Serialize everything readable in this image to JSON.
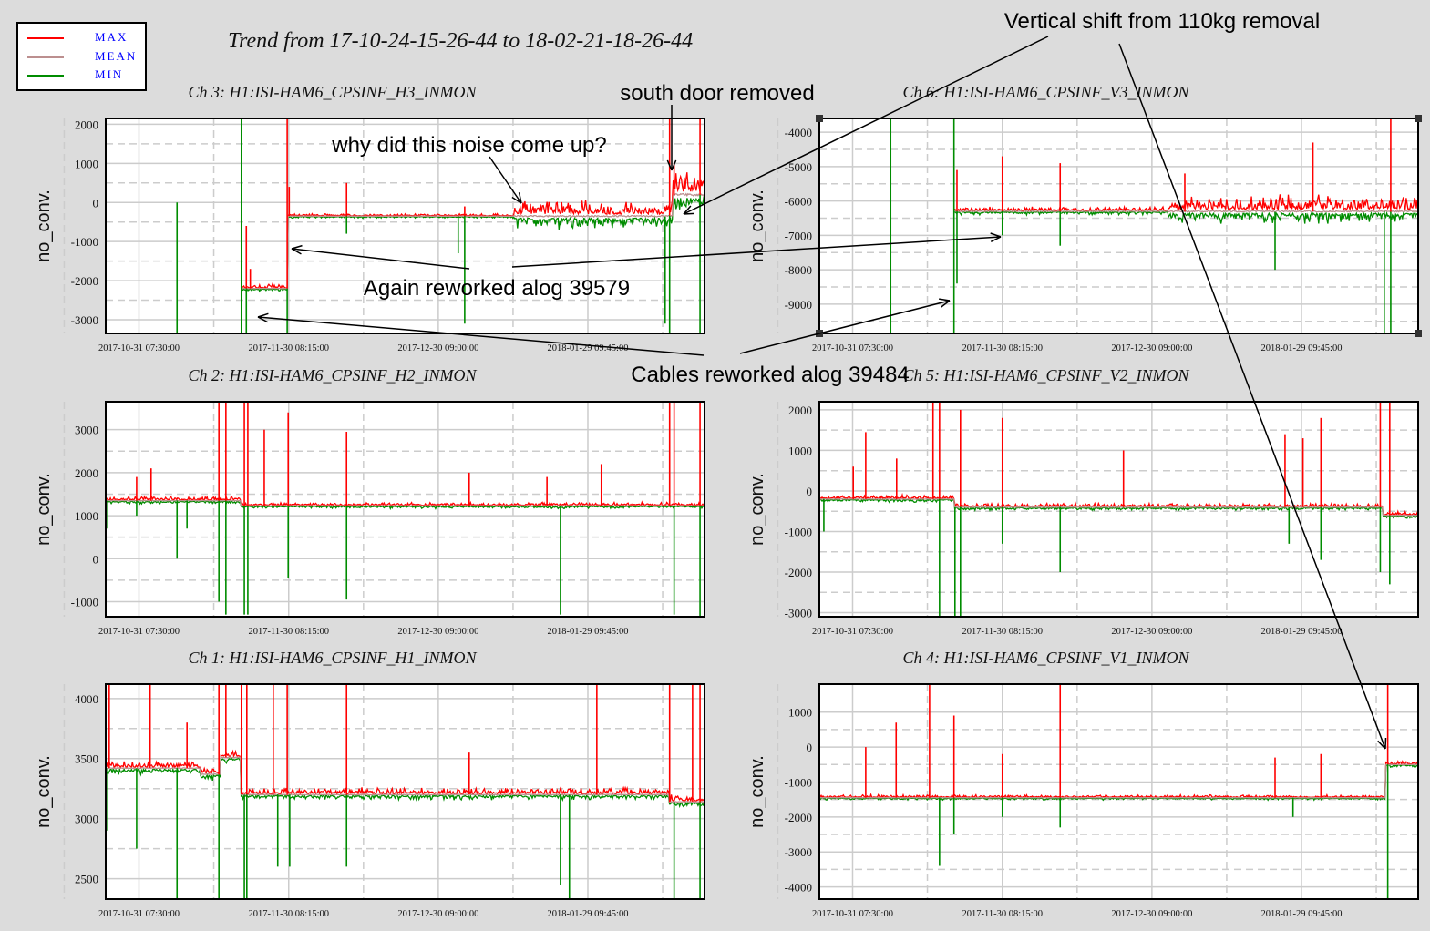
{
  "title": "Trend from 17-10-24-15-26-44 to 18-02-21-18-26-44",
  "legend": [
    {
      "label": "MAX",
      "color": "#ff0000"
    },
    {
      "label": "MEAN",
      "color": "#bc8f8f"
    },
    {
      "label": "MIN",
      "color": "#008c00"
    }
  ],
  "annotations": {
    "vertical_shift": "Vertical shift from 110kg removal",
    "south_door": "south door removed",
    "noise": "why did this noise come up?",
    "again_reworked": "Again reworked alog 39579",
    "cables_reworked": "Cables reworked alog 39484"
  },
  "chart_data": [
    {
      "type": "line",
      "title": "Ch 3: H1:ISI-HAM6_CPSINF_H3_INMON",
      "ylabel": "no_conv.",
      "ylim": [
        -3350,
        2150
      ],
      "yticks": [
        2000,
        1000,
        0,
        -1000,
        -2000,
        -3000
      ],
      "xlabel_ticks": [
        "2017-10-31 07:30:00",
        "2017-11-30 08:15:00",
        "2017-12-30 09:00:00",
        "2018-01-29 09:45:00"
      ],
      "xtick_days": [
        6.67,
        36.7,
        66.7,
        96.7
      ],
      "xlim_days": [
        0,
        120.1
      ],
      "segments": [
        [
          27.2,
          36.4,
          -2200,
          60
        ],
        [
          36.4,
          82,
          -350,
          40
        ],
        [
          82,
          113.7,
          -350,
          250
        ],
        [
          113.7,
          120.1,
          200,
          400
        ]
      ],
      "spikes": [
        [
          14.3,
          0,
          -3350
        ],
        [
          27.2,
          2150,
          -3350
        ],
        [
          28.2,
          -600,
          -3350
        ],
        [
          29,
          -1700,
          null
        ],
        [
          36.4,
          2150,
          -3350
        ],
        [
          36.8,
          400,
          null
        ],
        [
          48.3,
          500,
          -800
        ],
        [
          70.7,
          null,
          -1300
        ],
        [
          72,
          -100,
          -3100
        ],
        [
          112.2,
          null,
          -3100
        ],
        [
          113.1,
          2150,
          -3350
        ],
        [
          114,
          1000,
          null
        ],
        [
          119.2,
          2150,
          -3350
        ]
      ]
    },
    {
      "type": "line",
      "title": "Ch 6: H1:ISI-HAM6_CPSINF_V3_INMON",
      "ylabel": "no_conv.",
      "ylim": [
        -9850,
        -3600
      ],
      "yticks": [
        -4000,
        -5000,
        -6000,
        -7000,
        -8000,
        -9000
      ],
      "xlabel_ticks": [
        "2017-10-31 07:30:00",
        "2017-11-30 08:15:00",
        "2017-12-30 09:00:00",
        "2018-01-29 09:45:00"
      ],
      "xtick_days": [
        6.67,
        36.7,
        66.7,
        96.7
      ],
      "xlim_days": [
        0,
        120.1
      ],
      "segments": [
        [
          27,
          70,
          -6300,
          80
        ],
        [
          70,
          120.1,
          -6300,
          280
        ]
      ],
      "spikes": [
        [
          14.3,
          -3600,
          -9850
        ],
        [
          27,
          -3600,
          -9850
        ],
        [
          27.6,
          -5100,
          -8400
        ],
        [
          36.7,
          -4700,
          -7000
        ],
        [
          48.3,
          -4900,
          -7300
        ],
        [
          73.3,
          -5200,
          null
        ],
        [
          91.4,
          null,
          -8000
        ],
        [
          99,
          -4300,
          null
        ],
        [
          113.3,
          null,
          -9850
        ],
        [
          114.6,
          -3600,
          -9850
        ]
      ]
    },
    {
      "type": "line",
      "title": "Ch 2: H1:ISI-HAM6_CPSINF_H2_INMON",
      "ylabel": "no_conv.",
      "ylim": [
        -1350,
        3650
      ],
      "yticks": [
        3000,
        2000,
        1000,
        0,
        -1000
      ],
      "xlabel_ticks": [
        "2017-10-31 07:30:00",
        "2017-11-30 08:15:00",
        "2017-12-30 09:00:00",
        "2018-01-29 09:45:00"
      ],
      "xtick_days": [
        6.67,
        36.7,
        66.7,
        96.7
      ],
      "xlim_days": [
        0,
        120.1
      ],
      "segments": [
        [
          0,
          27,
          1350,
          60
        ],
        [
          27,
          120.1,
          1230,
          50
        ]
      ],
      "spikes": [
        [
          0.4,
          null,
          700
        ],
        [
          6.2,
          1900,
          1000
        ],
        [
          9.1,
          2100,
          null
        ],
        [
          14.3,
          null,
          0
        ],
        [
          16.3,
          null,
          700
        ],
        [
          22.7,
          3650,
          -1000
        ],
        [
          24.1,
          3650,
          -1300
        ],
        [
          27.8,
          3650,
          -1300
        ],
        [
          28.5,
          3650,
          -1300
        ],
        [
          31.8,
          3000,
          null
        ],
        [
          36.6,
          3400,
          -450
        ],
        [
          48.3,
          2950,
          -950
        ],
        [
          72.9,
          2000,
          null
        ],
        [
          88.5,
          1900,
          null
        ],
        [
          91.2,
          null,
          -1300
        ],
        [
          99.4,
          2200,
          null
        ],
        [
          113.1,
          3650,
          null
        ],
        [
          114,
          3650,
          -1300
        ],
        [
          119.2,
          3650,
          -1350
        ]
      ]
    },
    {
      "type": "line",
      "title": "Ch 5: H1:ISI-HAM6_CPSINF_V2_INMON",
      "ylabel": "no_conv.",
      "ylim": [
        -3100,
        2200
      ],
      "yticks": [
        2000,
        1000,
        0,
        -1000,
        -2000,
        -3000
      ],
      "xlabel_ticks": [
        "2017-10-31 07:30:00",
        "2017-11-30 08:15:00",
        "2017-12-30 09:00:00",
        "2018-01-29 09:45:00"
      ],
      "xtick_days": [
        6.67,
        36.7,
        66.7,
        96.7
      ],
      "xlim_days": [
        0,
        120.1
      ],
      "segments": [
        [
          0,
          27,
          -200,
          60
        ],
        [
          27,
          113,
          -400,
          60
        ],
        [
          113,
          120.1,
          -600,
          60
        ]
      ],
      "spikes": [
        [
          0.9,
          null,
          -1000
        ],
        [
          6.8,
          600,
          null
        ],
        [
          9.3,
          1450,
          null
        ],
        [
          15.5,
          800,
          null
        ],
        [
          22.8,
          2200,
          null
        ],
        [
          24.1,
          2200,
          -3100
        ],
        [
          27.2,
          null,
          -3100
        ],
        [
          28.3,
          2000,
          -3100
        ],
        [
          36.7,
          1800,
          -1300
        ],
        [
          48.3,
          null,
          -2000
        ],
        [
          61,
          1000,
          null
        ],
        [
          93.4,
          1400,
          null
        ],
        [
          94.2,
          null,
          -1300
        ],
        [
          97,
          1300,
          null
        ],
        [
          100.6,
          1800,
          -1700
        ],
        [
          112.5,
          2200,
          -2000
        ],
        [
          114.4,
          2200,
          -2300
        ]
      ]
    },
    {
      "type": "line",
      "title": "Ch 1: H1:ISI-HAM6_CPSINF_H1_INMON",
      "ylabel": "no_conv.",
      "ylim": [
        2330,
        4120
      ],
      "yticks": [
        4000,
        3500,
        3000,
        2500
      ],
      "xlabel_ticks": [
        "2017-10-31 07:30:00",
        "2017-11-30 08:15:00",
        "2017-12-30 09:00:00",
        "2018-01-29 09:45:00"
      ],
      "xtick_days": [
        6.67,
        36.7,
        66.7,
        96.7
      ],
      "xlim_days": [
        0,
        120.1
      ],
      "segments": [
        [
          0,
          19,
          3420,
          40
        ],
        [
          19,
          23,
          3370,
          40
        ],
        [
          23,
          27,
          3510,
          40
        ],
        [
          27,
          113,
          3200,
          35
        ],
        [
          113,
          120.1,
          3140,
          35
        ]
      ],
      "spikes": [
        [
          0.4,
          null,
          2900
        ],
        [
          0.7,
          4120,
          null
        ],
        [
          6.2,
          null,
          2750
        ],
        [
          8.9,
          4120,
          null
        ],
        [
          14.3,
          null,
          2330
        ],
        [
          16.3,
          3800,
          null
        ],
        [
          22.7,
          4120,
          2330
        ],
        [
          24.1,
          4120,
          null
        ],
        [
          27.2,
          4120,
          null
        ],
        [
          27.8,
          null,
          2330
        ],
        [
          28.3,
          4120,
          2330
        ],
        [
          33.6,
          4120,
          null
        ],
        [
          34.5,
          null,
          2600
        ],
        [
          36.4,
          4120,
          null
        ],
        [
          36.9,
          null,
          2600
        ],
        [
          48.3,
          4120,
          2600
        ],
        [
          72.9,
          3550,
          null
        ],
        [
          91.2,
          null,
          2450
        ],
        [
          93,
          null,
          2330
        ],
        [
          98.5,
          4120,
          null
        ],
        [
          113.1,
          4120,
          null
        ],
        [
          114,
          null,
          2330
        ],
        [
          117.7,
          4120,
          null
        ],
        [
          119.2,
          4120,
          2330
        ]
      ]
    },
    {
      "type": "line",
      "title": "Ch 4: H1:ISI-HAM6_CPSINF_V1_INMON",
      "ylabel": "no_conv.",
      "ylim": [
        -4350,
        1800
      ],
      "yticks": [
        1000,
        0,
        -1000,
        -2000,
        -3000,
        -4000
      ],
      "xlabel_ticks": [
        "2017-10-31 07:30:00",
        "2017-11-30 08:15:00",
        "2017-12-30 09:00:00",
        "2018-01-29 09:45:00"
      ],
      "xtick_days": [
        6.67,
        36.7,
        66.7,
        96.7
      ],
      "xlim_days": [
        0,
        120.1
      ],
      "segments": [
        [
          0,
          113.5,
          -1450,
          50
        ],
        [
          113.5,
          120.1,
          -500,
          60
        ]
      ],
      "spikes": [
        [
          9.3,
          0,
          null
        ],
        [
          15.4,
          700,
          null
        ],
        [
          22.1,
          1800,
          null
        ],
        [
          24.1,
          null,
          -3400
        ],
        [
          27,
          900,
          -2500
        ],
        [
          36.7,
          -200,
          -2000
        ],
        [
          48.3,
          1800,
          -2300
        ],
        [
          91.4,
          -300,
          null
        ],
        [
          95,
          null,
          -2000
        ],
        [
          100.6,
          -200,
          null
        ],
        [
          114,
          1800,
          -4350
        ]
      ]
    }
  ]
}
